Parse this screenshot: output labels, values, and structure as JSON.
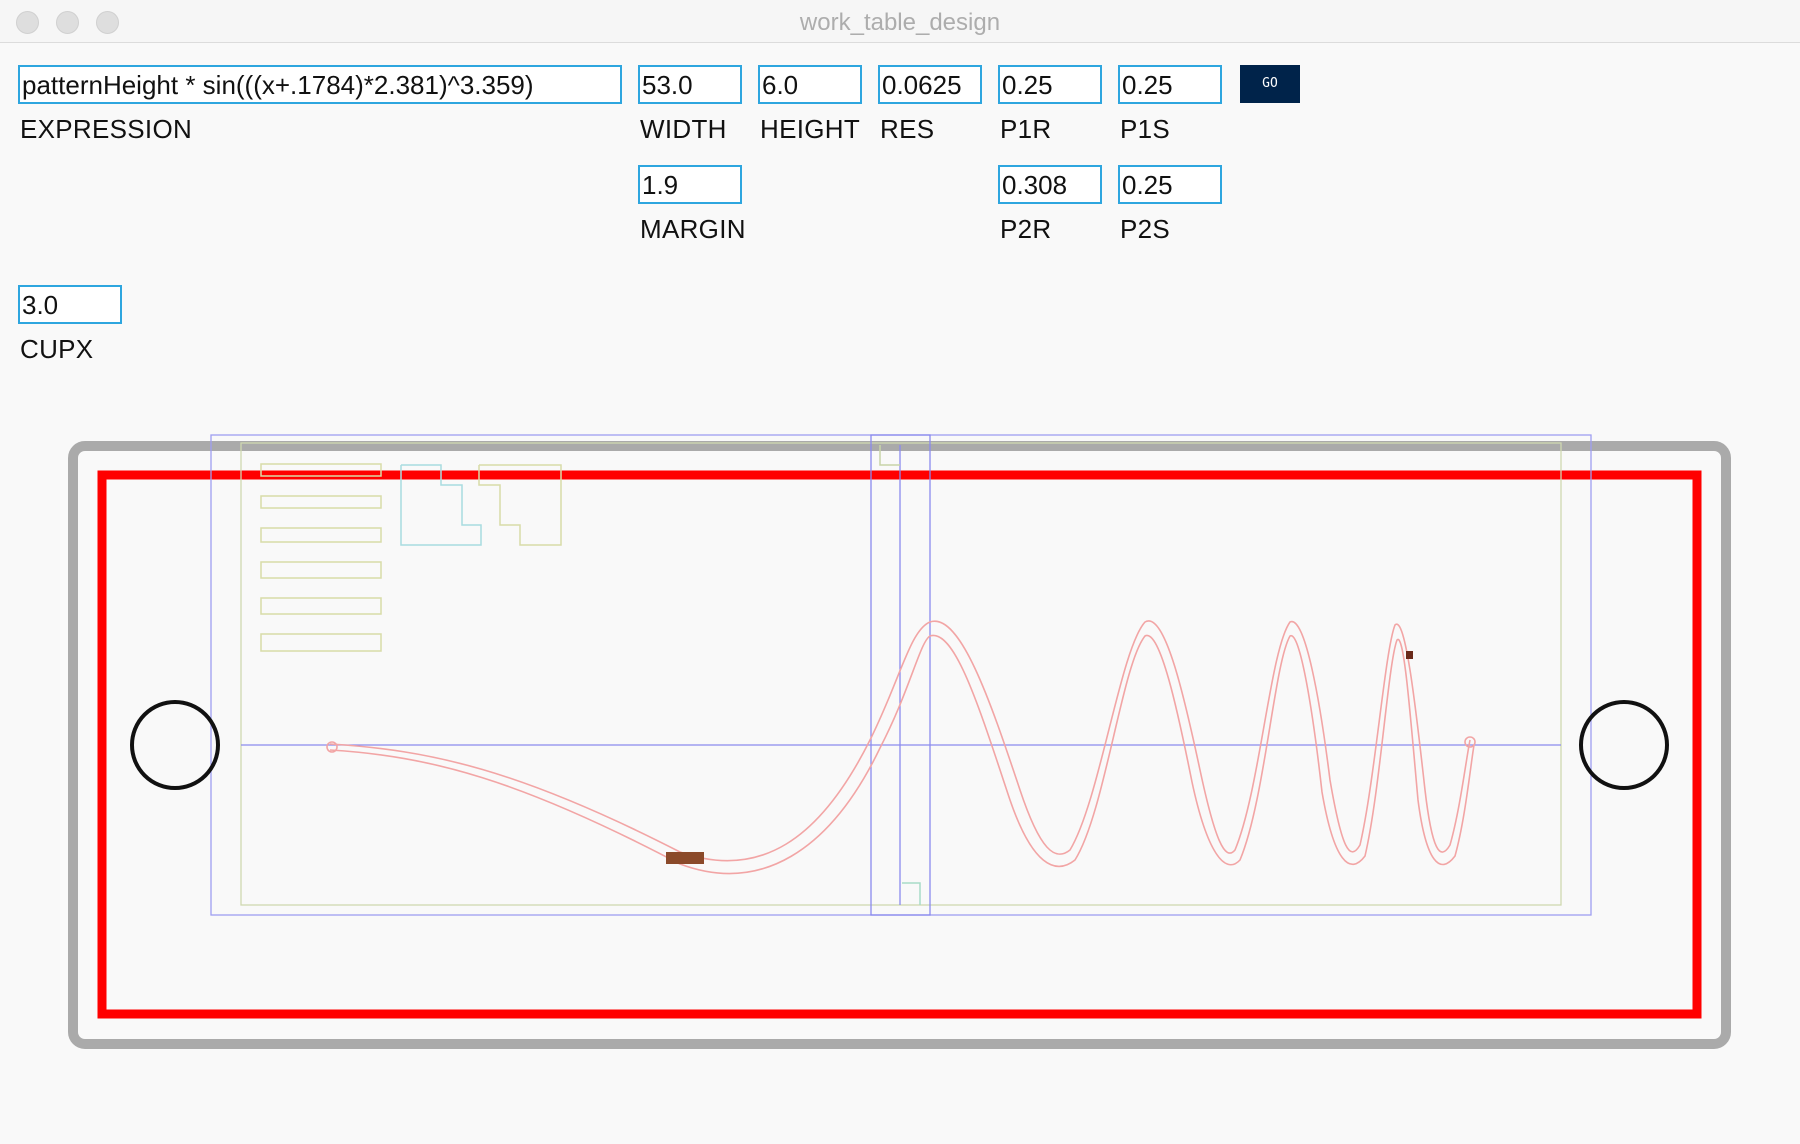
{
  "window": {
    "title": "work_table_design"
  },
  "fields": {
    "expression": {
      "label": "EXPRESSION",
      "value": "patternHeight * sin(((x+.1784)*2.381)^3.359)"
    },
    "width": {
      "label": "WIDTH",
      "value": "53.0"
    },
    "height": {
      "label": "HEIGHT",
      "value": "6.0"
    },
    "res": {
      "label": "RES",
      "value": "0.0625"
    },
    "p1r": {
      "label": "P1R",
      "value": "0.25"
    },
    "p1s": {
      "label": "P1S",
      "value": "0.25"
    },
    "margin": {
      "label": "MARGIN",
      "value": "1.9"
    },
    "p2r": {
      "label": "P2R",
      "value": "0.308"
    },
    "p2s": {
      "label": "P2S",
      "value": "0.25"
    },
    "cupx": {
      "label": "CUPX",
      "value": "3.0"
    }
  },
  "go_button": {
    "label": "GO"
  },
  "colors": {
    "accent_field_border": "#2ea6df",
    "go_button_bg": "#00234a",
    "table_outline": "#aaaaaa",
    "work_area": "#ff0000",
    "pattern_curve": "#f2a5a5",
    "guide_lines": "#8a8aee",
    "template_parts": "#d8dca8",
    "template_parts_alt": "#a8dce0"
  },
  "drawing": {
    "elements": [
      "table-outline",
      "work-area-boundary",
      "left-cup-circle",
      "right-cup-circle",
      "pattern-curve",
      "guide-rectangles",
      "template-parts"
    ]
  }
}
